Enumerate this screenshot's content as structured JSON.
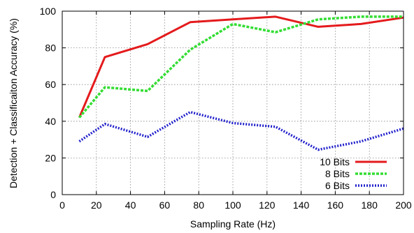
{
  "chart_data": {
    "type": "line",
    "title": "",
    "xlabel": "Sampling Rate (Hz)",
    "ylabel": "Detection + Classificaiton Accuracy (%)",
    "xlim": [
      0,
      200
    ],
    "ylim": [
      0,
      100
    ],
    "xticks": [
      0,
      20,
      40,
      60,
      80,
      100,
      120,
      140,
      160,
      180,
      200
    ],
    "yticks": [
      0,
      20,
      40,
      60,
      80,
      100
    ],
    "grid": true,
    "legend_position": "bottom-right",
    "series": [
      {
        "name": "10 Bits",
        "color": "#e41a1c",
        "style": "solid",
        "x": [
          10,
          25,
          50,
          75,
          100,
          125,
          150,
          175,
          200
        ],
        "y": [
          42,
          75,
          82,
          94,
          95.5,
          97,
          91.5,
          93,
          96.5
        ]
      },
      {
        "name": "8 Bits",
        "color": "#33dd33",
        "style": "dashed",
        "x": [
          10,
          25,
          50,
          75,
          100,
          125,
          150,
          175,
          200
        ],
        "y": [
          42,
          58.5,
          56.5,
          79,
          93,
          88.5,
          95.5,
          97,
          97
        ]
      },
      {
        "name": "6 Bits",
        "color": "#2222cc",
        "style": "dotted",
        "x": [
          10,
          25,
          50,
          75,
          100,
          125,
          150,
          175,
          200
        ],
        "y": [
          29,
          38.5,
          31.5,
          45,
          39,
          37,
          24.5,
          29,
          36
        ]
      }
    ]
  }
}
